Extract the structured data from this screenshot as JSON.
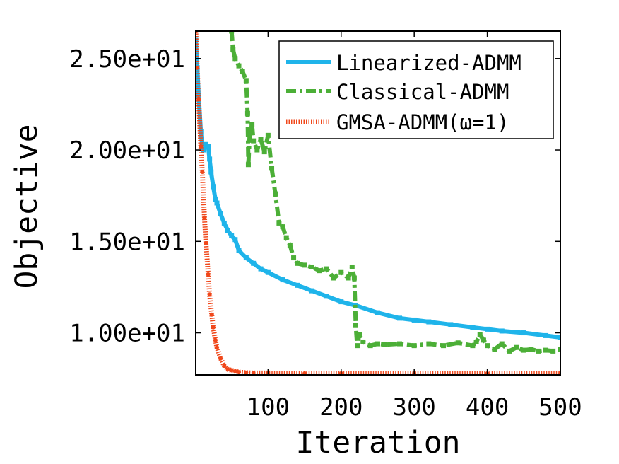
{
  "chart_data": {
    "type": "line",
    "xlabel": "Iteration",
    "ylabel": "Objective",
    "xlim": [
      1,
      500
    ],
    "ylim": [
      7.7,
      26.5
    ],
    "xticks": [
      {
        "value": 100,
        "label": "100"
      },
      {
        "value": 200,
        "label": "200"
      },
      {
        "value": 300,
        "label": "300"
      },
      {
        "value": 400,
        "label": "400"
      },
      {
        "value": 500,
        "label": "500"
      }
    ],
    "yticks": [
      {
        "value": 10,
        "label": "1.00e+01"
      },
      {
        "value": 15,
        "label": "1.50e+01"
      },
      {
        "value": 20,
        "label": "2.00e+01"
      },
      {
        "value": 25,
        "label": "2.50e+01"
      }
    ],
    "legend_position": "top-right",
    "series": [
      {
        "name": "Linearized-ADMM",
        "color": "#1fb4ea",
        "style": "solid",
        "x": [
          1,
          3,
          5,
          8,
          10,
          12,
          15,
          18,
          20,
          22,
          25,
          28,
          30,
          35,
          40,
          45,
          50,
          55,
          60,
          70,
          80,
          90,
          100,
          120,
          140,
          160,
          180,
          200,
          220,
          250,
          280,
          300,
          320,
          350,
          380,
          400,
          420,
          450,
          480,
          500
        ],
        "y": [
          26.0,
          24.5,
          23.0,
          21.0,
          20.2,
          20.0,
          20.3,
          20.2,
          19.5,
          18.8,
          18.0,
          17.3,
          17.1,
          16.5,
          16.0,
          15.6,
          15.3,
          15.1,
          14.5,
          14.1,
          13.8,
          13.5,
          13.3,
          12.9,
          12.6,
          12.3,
          12.0,
          11.7,
          11.5,
          11.1,
          10.8,
          10.7,
          10.6,
          10.45,
          10.3,
          10.2,
          10.1,
          10.0,
          9.85,
          9.75
        ]
      },
      {
        "name": "Classical-ADMM",
        "color": "#4caf37",
        "style": "dash-dot",
        "x": [
          50,
          52,
          55,
          60,
          65,
          70,
          72,
          73,
          75,
          78,
          80,
          85,
          90,
          95,
          100,
          105,
          110,
          115,
          120,
          125,
          130,
          135,
          140,
          150,
          160,
          170,
          180,
          190,
          200,
          210,
          215,
          218,
          220,
          222,
          225,
          230,
          240,
          250,
          260,
          280,
          300,
          320,
          340,
          360,
          380,
          385,
          390,
          395,
          400,
          410,
          420,
          430,
          440,
          450,
          460,
          470,
          480,
          490,
          500
        ],
        "y": [
          26.5,
          25.5,
          25.0,
          24.6,
          24.3,
          23.8,
          22.0,
          19.2,
          21.0,
          21.4,
          20.5,
          20.0,
          20.6,
          19.9,
          20.8,
          19.0,
          17.6,
          16.0,
          15.8,
          15.2,
          14.8,
          14.1,
          13.8,
          13.7,
          13.6,
          13.4,
          13.5,
          13.0,
          13.3,
          13.0,
          13.6,
          13.0,
          10.4,
          9.3,
          9.9,
          9.5,
          9.3,
          9.4,
          9.35,
          9.4,
          9.3,
          9.4,
          9.3,
          9.45,
          9.3,
          9.5,
          9.9,
          9.6,
          9.3,
          9.1,
          9.4,
          9.0,
          9.2,
          9.05,
          9.1,
          9.0,
          9.05,
          9.0,
          9.1
        ]
      },
      {
        "name": "GMSA-ADMM(ω=1)",
        "color": "#f0471a",
        "style": "dotted",
        "x": [
          1,
          3,
          5,
          8,
          10,
          13,
          15,
          18,
          20,
          23,
          25,
          28,
          30,
          35,
          40,
          45,
          50,
          55,
          60,
          70,
          80,
          100,
          150,
          200,
          300,
          400,
          500
        ],
        "y": [
          26.5,
          24.5,
          22.8,
          20.2,
          18.8,
          16.3,
          14.9,
          13.2,
          12.1,
          11.0,
          10.3,
          9.6,
          9.2,
          8.6,
          8.2,
          8.0,
          7.95,
          7.9,
          7.85,
          7.82,
          7.8,
          7.8,
          7.78,
          7.78,
          7.78,
          7.78,
          7.78
        ]
      }
    ]
  }
}
